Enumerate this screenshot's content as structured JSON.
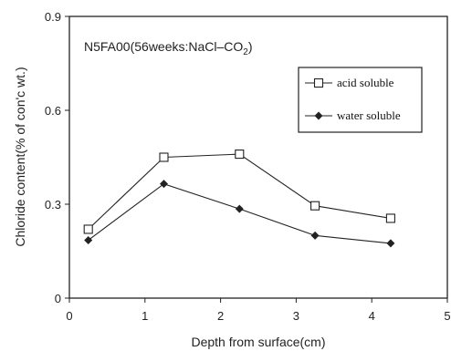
{
  "chart_data": {
    "type": "line",
    "title": "",
    "annotation": {
      "main": "N5FA00(56weeks:NaCl–CO",
      "subscript": "2",
      "close": ")"
    },
    "xlabel": "Depth from surface(cm)",
    "ylabel": "Chloride content(% of con'c wt.)",
    "xlim": [
      0,
      5
    ],
    "ylim": [
      0,
      0.9
    ],
    "x_ticks": [
      0,
      1,
      2,
      3,
      4,
      5
    ],
    "x_tick_labels": [
      "0",
      "1",
      "2",
      "3",
      "4",
      "5"
    ],
    "y_ticks": [
      0,
      0.3,
      0.6,
      0.9
    ],
    "y_tick_labels": [
      "0",
      "0.3",
      "0.6",
      "0.9"
    ],
    "grid": false,
    "legend_position": "top-right",
    "series": [
      {
        "name": "acid soluble",
        "marker": "open-square",
        "color": "#222222",
        "x": [
          0.25,
          1.25,
          2.25,
          3.25,
          4.25
        ],
        "values": [
          0.22,
          0.45,
          0.46,
          0.295,
          0.255
        ]
      },
      {
        "name": "water soluble",
        "marker": "filled-diamond",
        "color": "#222222",
        "x": [
          0.25,
          1.25,
          2.25,
          3.25,
          4.25
        ],
        "values": [
          0.185,
          0.365,
          0.285,
          0.2,
          0.175
        ]
      }
    ]
  }
}
